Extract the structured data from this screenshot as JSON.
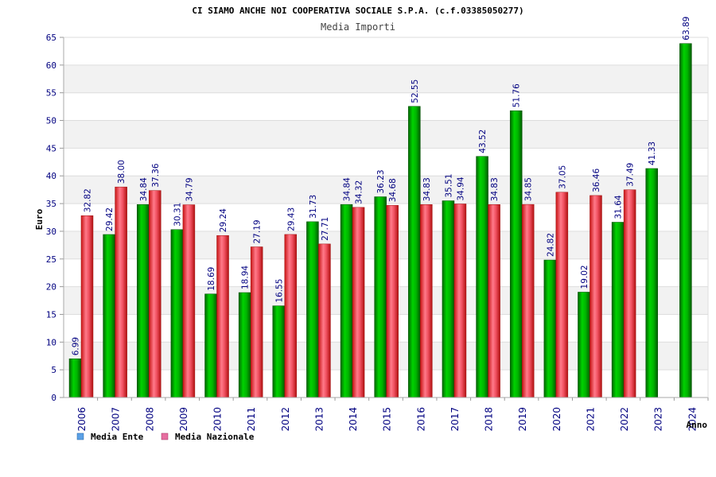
{
  "chart_data": {
    "type": "bar",
    "title": "CI SIAMO ANCHE NOI COOPERATIVA SOCIALE S.P.A. (c.f.03385050277)",
    "subtitle": "Media Importi",
    "ylabel": "Euro",
    "xlabel": "Anno",
    "ylim": [
      0,
      65
    ],
    "yticks": [
      0,
      5,
      10,
      15,
      20,
      25,
      30,
      35,
      40,
      45,
      50,
      55,
      60,
      65
    ],
    "grid": true,
    "legend_position": "bottom-left",
    "categories": [
      "2006",
      "2007",
      "2008",
      "2009",
      "2010",
      "2011",
      "2012",
      "2013",
      "2014",
      "2015",
      "2016",
      "2017",
      "2018",
      "2019",
      "2020",
      "2021",
      "2022",
      "2023",
      "2024"
    ],
    "series": [
      {
        "name": "Media Ente",
        "color": "#00aa00",
        "legend_color": "#5aa0e6",
        "values": [
          6.99,
          29.42,
          34.84,
          30.31,
          18.69,
          18.94,
          16.55,
          31.73,
          34.84,
          36.23,
          52.55,
          35.51,
          43.52,
          51.76,
          24.82,
          19.02,
          31.64,
          41.33,
          63.89
        ],
        "labels": [
          "6.99",
          "29.42",
          "34.84",
          "30.31",
          "18.69",
          "18.94",
          "16.55",
          "31.73",
          "34.84",
          "36.23",
          "52.55",
          "35.51",
          "43.52",
          "51.76",
          "24.82",
          "19.02",
          "31.64",
          "41.33",
          "63.89"
        ]
      },
      {
        "name": "Media Nazionale",
        "color": "#e83030",
        "legend_color": "#e66ea0",
        "values": [
          32.82,
          38.0,
          37.36,
          34.79,
          29.24,
          27.19,
          29.43,
          27.71,
          34.32,
          34.68,
          34.83,
          34.94,
          34.83,
          34.85,
          37.05,
          36.46,
          37.49,
          null,
          null
        ],
        "labels": [
          "32.82",
          "38.00",
          "37.36",
          "34.79",
          "29.24",
          "27.19",
          "29.43",
          "27.71",
          "34.32",
          "34.68",
          "34.83",
          "34.94",
          "34.83",
          "34.85",
          "37.05",
          "36.46",
          "37.49",
          "",
          ""
        ]
      }
    ]
  }
}
